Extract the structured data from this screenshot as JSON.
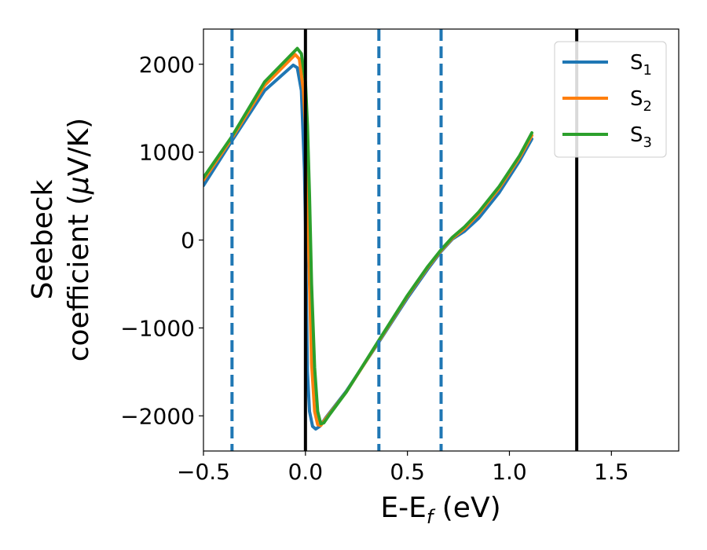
{
  "chart_data": {
    "type": "line",
    "title": "",
    "xlabel_main": "E-E",
    "xlabel_sub": "f",
    "xlabel_unit": " (eV)",
    "ylabel_line1": "Seebeck",
    "ylabel_line2_prefix": "coefficient  (",
    "ylabel_mu": "μ",
    "ylabel_line2_suffix": "V/K)",
    "xlim": [
      -0.5,
      1.83
    ],
    "ylim": [
      -2400,
      2400
    ],
    "xticks": [
      -0.5,
      0.0,
      0.5,
      1.0,
      1.5
    ],
    "xtick_labels": [
      "−0.5",
      "0.0",
      "0.5",
      "1.0",
      "1.5"
    ],
    "yticks": [
      2000,
      1000,
      0,
      -1000,
      -2000
    ],
    "ytick_labels": [
      "2000",
      "1000",
      "0",
      "−1000",
      "−2000"
    ],
    "grid": false,
    "legend_position": "top-right",
    "vlines_solid": [
      0.0,
      1.33
    ],
    "vlines_dashed": [
      -0.36,
      0.36,
      0.665
    ],
    "colors": {
      "S1": "#1f77b4",
      "S2": "#ff7f0e",
      "S3": "#2ca02c",
      "solid_vline": "#000000",
      "dashed_vline": "#1f77b4"
    },
    "series": [
      {
        "label_main": "S",
        "label_sub": "1",
        "color": "#1f77b4",
        "points": [
          [
            -0.5,
            620
          ],
          [
            -0.36,
            1130
          ],
          [
            -0.2,
            1700
          ],
          [
            -0.06,
            1990
          ],
          [
            -0.04,
            1960
          ],
          [
            -0.02,
            1700
          ],
          [
            -0.005,
            800
          ],
          [
            0.0,
            200
          ],
          [
            0.005,
            -700
          ],
          [
            0.01,
            -1500
          ],
          [
            0.02,
            -1950
          ],
          [
            0.035,
            -2120
          ],
          [
            0.05,
            -2150
          ],
          [
            0.07,
            -2120
          ],
          [
            0.1,
            -2020
          ],
          [
            0.2,
            -1720
          ],
          [
            0.36,
            -1160
          ],
          [
            0.5,
            -660
          ],
          [
            0.6,
            -330
          ],
          [
            0.665,
            -130
          ],
          [
            0.72,
            10
          ],
          [
            0.78,
            100
          ],
          [
            0.85,
            250
          ],
          [
            0.95,
            540
          ],
          [
            1.05,
            900
          ],
          [
            1.11,
            1150
          ]
        ]
      },
      {
        "label_main": "S",
        "label_sub": "2",
        "color": "#ff7f0e",
        "points": [
          [
            -0.5,
            680
          ],
          [
            -0.36,
            1160
          ],
          [
            -0.2,
            1760
          ],
          [
            -0.05,
            2110
          ],
          [
            -0.03,
            2060
          ],
          [
            -0.01,
            1700
          ],
          [
            0.0,
            1300
          ],
          [
            0.01,
            500
          ],
          [
            0.02,
            -500
          ],
          [
            0.03,
            -1400
          ],
          [
            0.045,
            -1950
          ],
          [
            0.06,
            -2100
          ],
          [
            0.075,
            -2110
          ],
          [
            0.1,
            -2030
          ],
          [
            0.2,
            -1730
          ],
          [
            0.36,
            -1150
          ],
          [
            0.5,
            -640
          ],
          [
            0.6,
            -310
          ],
          [
            0.665,
            -120
          ],
          [
            0.72,
            20
          ],
          [
            0.78,
            130
          ],
          [
            0.85,
            300
          ],
          [
            0.95,
            590
          ],
          [
            1.05,
            940
          ],
          [
            1.11,
            1190
          ]
        ]
      },
      {
        "label_main": "S",
        "label_sub": "3",
        "color": "#2ca02c",
        "points": [
          [
            -0.5,
            710
          ],
          [
            -0.36,
            1180
          ],
          [
            -0.2,
            1800
          ],
          [
            -0.04,
            2180
          ],
          [
            -0.02,
            2120
          ],
          [
            0.0,
            1800
          ],
          [
            0.01,
            1300
          ],
          [
            0.02,
            500
          ],
          [
            0.03,
            -500
          ],
          [
            0.045,
            -1450
          ],
          [
            0.06,
            -1950
          ],
          [
            0.075,
            -2090
          ],
          [
            0.09,
            -2080
          ],
          [
            0.12,
            -1980
          ],
          [
            0.2,
            -1730
          ],
          [
            0.36,
            -1140
          ],
          [
            0.5,
            -630
          ],
          [
            0.6,
            -300
          ],
          [
            0.665,
            -110
          ],
          [
            0.72,
            30
          ],
          [
            0.78,
            150
          ],
          [
            0.85,
            320
          ],
          [
            0.95,
            610
          ],
          [
            1.05,
            960
          ],
          [
            1.11,
            1220
          ]
        ]
      }
    ]
  }
}
